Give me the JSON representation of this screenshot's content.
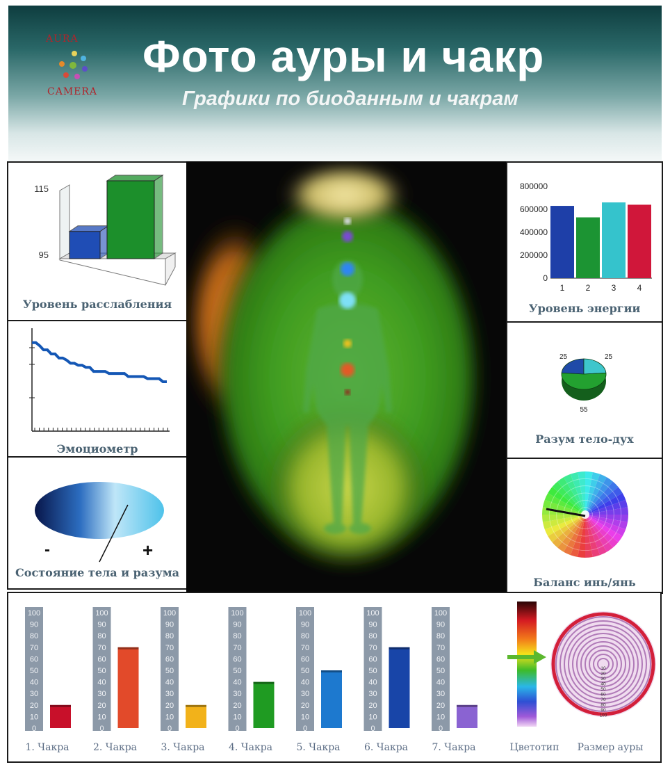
{
  "header": {
    "logo_top": "AURA",
    "logo_bottom": "CAMERA",
    "title": "Фото  ауры и чакр",
    "subtitle": "Графики по биоданным и чакрам"
  },
  "colors": {
    "header_dark": "#0e3d3f",
    "caption": "#4a6272",
    "aura_green": "#2f8f1c",
    "aura_orange": "#d77a1e",
    "ring": "#d31f3a"
  },
  "panels": {
    "relaxation": {
      "caption": "Уровень расслабления",
      "chart_data": {
        "type": "bar",
        "values": [
          103,
          115
        ],
        "ytick_labels": [
          "115",
          "95"
        ],
        "ylim": [
          95,
          115
        ],
        "colors": [
          "#1f4db5",
          "#1c8f2b"
        ]
      }
    },
    "energy": {
      "caption": "Уровень энергии",
      "chart_data": {
        "type": "bar",
        "categories": [
          "1",
          "2",
          "3",
          "4"
        ],
        "values": [
          630000,
          530000,
          660000,
          640000
        ],
        "ytick_labels": [
          "800000",
          "600000",
          "400000",
          "200000",
          "0"
        ],
        "ylim": [
          0,
          800000
        ],
        "colors": [
          "#1e3fa8",
          "#1c9433",
          "#35c3cc",
          "#d0173a"
        ]
      }
    },
    "emotiometer": {
      "caption": "Эмоциометр",
      "chart_data": {
        "type": "line",
        "values": [
          0.86,
          0.86,
          0.83,
          0.79,
          0.79,
          0.75,
          0.75,
          0.71,
          0.71,
          0.69,
          0.66,
          0.66,
          0.64,
          0.64,
          0.62,
          0.62,
          0.58,
          0.58,
          0.58,
          0.58,
          0.56,
          0.56,
          0.56,
          0.56,
          0.56,
          0.53,
          0.53,
          0.53,
          0.53,
          0.53,
          0.51,
          0.51,
          0.51,
          0.51,
          0.48,
          0.48
        ],
        "ylim": [
          0,
          1
        ]
      }
    },
    "mind_body_spirit": {
      "caption": "Разум тело-дух",
      "chart_data": {
        "type": "pie",
        "values": [
          25,
          25,
          55
        ],
        "labels": [
          "25",
          "25",
          "55"
        ],
        "colors": [
          "#1f4aa8",
          "#3ec6cc",
          "#23a130"
        ]
      }
    },
    "body_mind": {
      "caption": "Состояние тела и разума",
      "minus": "-",
      "plus": "+",
      "level": 0.72
    },
    "yin_yang": {
      "caption": "Баланс инь/янь"
    }
  },
  "chakras": {
    "chart_data": {
      "type": "bar",
      "categories": [
        "1. Чакра",
        "2. Чакра",
        "3. Чакра",
        "4. Чакра",
        "5. Чакра",
        "6. Чакра",
        "7. Чакра"
      ],
      "values": [
        20,
        70,
        20,
        40,
        50,
        70,
        20
      ],
      "ylim": [
        0,
        100
      ],
      "ytick_labels": [
        "100",
        "90",
        "80",
        "70",
        "60",
        "50",
        "40",
        "30",
        "20",
        "10",
        "0"
      ],
      "colors": [
        "#c8102a",
        "#e24a2a",
        "#f2b21a",
        "#1f9b22",
        "#1d79cf",
        "#1845a8",
        "#8a63d2"
      ]
    }
  },
  "colortype": {
    "label": "Цветотип"
  },
  "aura_size": {
    "label": "Размер ауры",
    "scale": [
      "10",
      "20",
      "30",
      "40",
      "50",
      "60",
      "70",
      "80",
      "90",
      "100"
    ]
  }
}
